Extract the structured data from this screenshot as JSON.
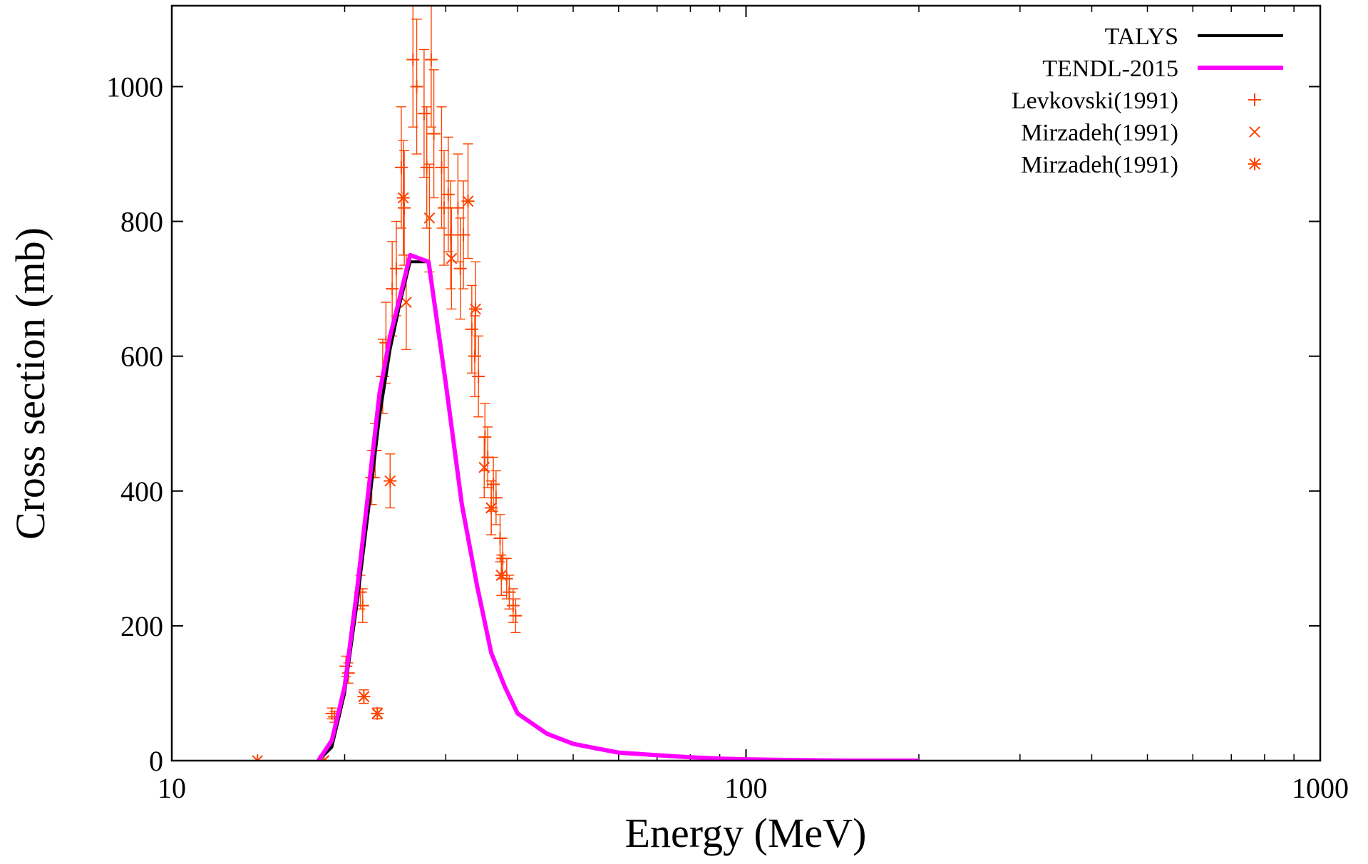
{
  "chart_data": {
    "type": "line",
    "xlabel": "Energy (MeV)",
    "ylabel": "Cross section (mb)",
    "xscale": "log",
    "xlim": [
      10,
      1000
    ],
    "ylim": [
      0,
      1120
    ],
    "xticks": [
      {
        "value": 10,
        "label": "10"
      },
      {
        "value": 100,
        "label": "100"
      },
      {
        "value": 1000,
        "label": "1000"
      }
    ],
    "yticks": [
      {
        "value": 0,
        "label": "0"
      },
      {
        "value": 200,
        "label": "200"
      },
      {
        "value": 400,
        "label": "400"
      },
      {
        "value": 600,
        "label": "600"
      },
      {
        "value": 800,
        "label": "800"
      },
      {
        "value": 1000,
        "label": "1000"
      }
    ],
    "grid": false,
    "legend_position": "top-right",
    "series": [
      {
        "name": "TALYS",
        "kind": "line",
        "color": "#000000",
        "x": [
          18,
          19,
          20,
          21,
          22,
          23,
          24,
          25,
          26,
          27,
          28,
          30,
          32,
          34,
          36,
          38,
          40,
          45,
          50,
          55,
          60,
          70,
          80,
          90,
          100,
          120,
          150,
          200
        ],
        "y": [
          0,
          20,
          100,
          230,
          370,
          510,
          610,
          680,
          740,
          740,
          740,
          560,
          380,
          260,
          160,
          110,
          70,
          40,
          25,
          18,
          12,
          8,
          5,
          3,
          2,
          1,
          0,
          0
        ]
      },
      {
        "name": "TENDL-2015",
        "kind": "line",
        "color": "#ff00ff",
        "x": [
          18,
          19,
          20,
          21,
          22,
          23,
          24,
          25,
          26,
          27,
          28,
          30,
          32,
          34,
          36,
          38,
          40,
          45,
          50,
          55,
          60,
          70,
          80,
          90,
          100,
          120,
          150,
          200
        ],
        "y": [
          0,
          30,
          110,
          250,
          400,
          545,
          630,
          690,
          750,
          745,
          740,
          560,
          380,
          260,
          160,
          110,
          70,
          40,
          25,
          18,
          12,
          8,
          5,
          3,
          2,
          1,
          0,
          0
        ]
      },
      {
        "name": "Levkovski(1991)",
        "kind": "points",
        "marker": "plus",
        "color": "#ff4400",
        "points": [
          {
            "x": 19.0,
            "y": 70,
            "err": 8
          },
          {
            "x": 19.2,
            "y": 65,
            "err": 8
          },
          {
            "x": 20.1,
            "y": 140,
            "err": 15
          },
          {
            "x": 20.3,
            "y": 130,
            "err": 15
          },
          {
            "x": 21.3,
            "y": 250,
            "err": 25
          },
          {
            "x": 21.5,
            "y": 230,
            "err": 25
          },
          {
            "x": 22.3,
            "y": 420,
            "err": 40
          },
          {
            "x": 22.6,
            "y": 460,
            "err": 40
          },
          {
            "x": 23.3,
            "y": 570,
            "err": 55
          },
          {
            "x": 23.6,
            "y": 620,
            "err": 60
          },
          {
            "x": 24.2,
            "y": 700,
            "err": 70
          },
          {
            "x": 24.6,
            "y": 730,
            "err": 70
          },
          {
            "x": 25.1,
            "y": 880,
            "err": 90
          },
          {
            "x": 25.4,
            "y": 820,
            "err": 85
          },
          {
            "x": 26.3,
            "y": 1040,
            "err": 100
          },
          {
            "x": 26.7,
            "y": 1000,
            "err": 100
          },
          {
            "x": 27.5,
            "y": 960,
            "err": 95
          },
          {
            "x": 27.8,
            "y": 880,
            "err": 90
          },
          {
            "x": 28.3,
            "y": 1040,
            "err": 100
          },
          {
            "x": 28.6,
            "y": 930,
            "err": 95
          },
          {
            "x": 29.5,
            "y": 880,
            "err": 90
          },
          {
            "x": 29.8,
            "y": 820,
            "err": 85
          },
          {
            "x": 30.3,
            "y": 840,
            "err": 85
          },
          {
            "x": 30.6,
            "y": 780,
            "err": 80
          },
          {
            "x": 31.5,
            "y": 820,
            "err": 80
          },
          {
            "x": 31.8,
            "y": 730,
            "err": 75
          },
          {
            "x": 32.2,
            "y": 780,
            "err": 80
          },
          {
            "x": 33.3,
            "y": 640,
            "err": 65
          },
          {
            "x": 33.7,
            "y": 600,
            "err": 60
          },
          {
            "x": 34.2,
            "y": 570,
            "err": 60
          },
          {
            "x": 35.1,
            "y": 480,
            "err": 50
          },
          {
            "x": 35.5,
            "y": 450,
            "err": 45
          },
          {
            "x": 36.3,
            "y": 410,
            "err": 40
          },
          {
            "x": 36.7,
            "y": 390,
            "err": 40
          },
          {
            "x": 37.3,
            "y": 330,
            "err": 35
          },
          {
            "x": 37.7,
            "y": 300,
            "err": 30
          },
          {
            "x": 38.3,
            "y": 270,
            "err": 30
          },
          {
            "x": 38.7,
            "y": 250,
            "err": 25
          },
          {
            "x": 39.3,
            "y": 230,
            "err": 25
          },
          {
            "x": 39.7,
            "y": 215,
            "err": 25
          }
        ]
      },
      {
        "name": "Mirzadeh(1991)",
        "kind": "points",
        "marker": "cross",
        "color": "#ff4400",
        "points": [
          {
            "x": 18.4,
            "y": 0,
            "err": 0
          },
          {
            "x": 21.6,
            "y": 95,
            "err": 10
          },
          {
            "x": 22.8,
            "y": 70,
            "err": 8
          },
          {
            "x": 25.6,
            "y": 680,
            "err": 70
          },
          {
            "x": 28.1,
            "y": 805,
            "err": 80
          },
          {
            "x": 30.7,
            "y": 745,
            "err": 75
          },
          {
            "x": 35.0,
            "y": 435,
            "err": 45
          },
          {
            "x": 36.0,
            "y": 375,
            "err": 40
          },
          {
            "x": 37.5,
            "y": 275,
            "err": 30
          }
        ]
      },
      {
        "name": "Mirzadeh(1991)",
        "kind": "points",
        "marker": "star",
        "color": "#ff4400",
        "points": [
          {
            "x": 14.1,
            "y": 0,
            "err": 0
          },
          {
            "x": 18.4,
            "y": 0,
            "err": 0
          },
          {
            "x": 21.6,
            "y": 95,
            "err": 10
          },
          {
            "x": 22.8,
            "y": 70,
            "err": 8
          },
          {
            "x": 24.0,
            "y": 415,
            "err": 40
          },
          {
            "x": 25.3,
            "y": 835,
            "err": 85
          },
          {
            "x": 32.8,
            "y": 830,
            "err": 85
          },
          {
            "x": 33.8,
            "y": 670,
            "err": 70
          },
          {
            "x": 36.0,
            "y": 375,
            "err": 40
          },
          {
            "x": 37.5,
            "y": 275,
            "err": 30
          }
        ]
      }
    ]
  }
}
